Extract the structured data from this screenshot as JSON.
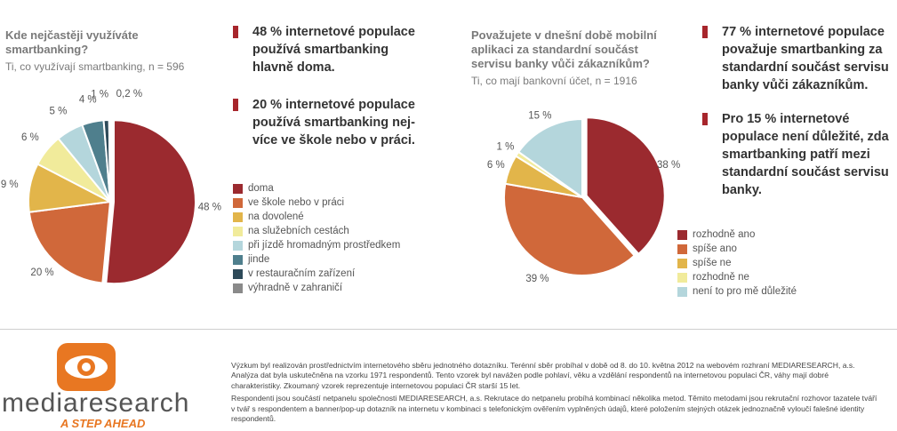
{
  "chart_data": [
    {
      "type": "pie",
      "title": "Kde nejčastěji využíváte smartbanking?",
      "subtitle": "Ti, co využívají smartbanking, n = 596",
      "categories": [
        "doma",
        "ve škole nebo v práci",
        "na dovolené",
        "na služebních cestách",
        "při jízdě hromadným prostředkem",
        "jinde",
        "v restauračním zařízení",
        "výhradně v zahraničí"
      ],
      "values": [
        48,
        20,
        9,
        6,
        5,
        4,
        1,
        0.2
      ],
      "labels": [
        "48 %",
        "20 %",
        "9 %",
        "6 %",
        "5 %",
        "4 %",
        "1 %",
        "0,2 %"
      ],
      "colors": [
        "#9b2a2f",
        "#d0683a",
        "#e2b54a",
        "#f1eb9b",
        "#b4d6dc",
        "#4f7f8d",
        "#2e4a59",
        "#8a8a8a"
      ],
      "legend_position": "right"
    },
    {
      "type": "pie",
      "title": "Považujete v dnešní době mobilní aplikaci za standardní součást servisu banky vůči zákazníkům?",
      "subtitle": "Ti, co mají bankovní účet, n = 1916",
      "categories": [
        "rozhodně ano",
        "spíše ano",
        "spíše ne",
        "rozhodně ne",
        "není to pro mě důležité"
      ],
      "values": [
        38,
        39,
        6,
        1,
        15
      ],
      "labels": [
        "38 %",
        "39 %",
        "6 %",
        "1 %",
        "15 %"
      ],
      "colors": [
        "#9b2a2f",
        "#d0683a",
        "#e2b54a",
        "#f1eb9b",
        "#b4d6dc"
      ],
      "legend_position": "bottom-right"
    }
  ],
  "left": {
    "title_line1": "Kde nejčastěji využíváte",
    "title_line2": "smartbanking?",
    "subtitle": "Ti, co využívají smartbanking, n = 596",
    "highlight1": [
      "48 % internetové populace",
      "používá smartbanking",
      "hlavně doma."
    ],
    "highlight2": [
      "20 % internetové populace",
      "používá smartbanking nej-",
      "více ve škole nebo v práci."
    ]
  },
  "right": {
    "title_line1": "Považujete v dnešní době mobilní",
    "title_line2": "aplikaci za standardní součást",
    "title_line3": "servisu banky vůči zákazníkům?",
    "subtitle": "Ti, co mají bankovní účet, n = 1916",
    "highlight1": [
      "77 % internetové populace",
      "považuje smartbanking za",
      "standardní součást servisu",
      "banky vůči zákazníkům."
    ],
    "highlight2": [
      "Pro 15 % internetové",
      "populace není důležité, zda",
      "smartbanking patří mezi",
      "standardní součást servisu",
      "banky."
    ]
  },
  "brand": {
    "name": "mediaresearch",
    "tagline": "A STEP AHEAD",
    "orange": "#e87722"
  },
  "footer": {
    "p1": [
      "Výzkum byl realizován prostřednictvím internetového sběru jednotného dotazníku. Terénní sběr probíhal v době od 8. do 10. května 2012 na webovém rozhraní MEDIARESEARCH, a.s.",
      "Analýza dat byla uskutečněna na vzorku 1971 respondentů. Tento vzorek byl navážen podle pohlaví, věku a vzdělání respondentů na internetovou populaci ČR, váhy mají dobré",
      "charakteristiky. Zkoumaný vzorek reprezentuje internetovou populaci ČR starší 15 let."
    ],
    "p2": [
      "Respondenti jsou součástí netpanelu společnosti MEDIARESEARCH, a.s. Rekrutace do netpanelu probíhá kombinací několika metod. Těmito metodami jsou rekrutační rozhovor tazatele tváří",
      "v tvář s respondentem a banner/pop-up dotazník na internetu v kombinaci s telefonickým ověřením vyplněných údajů, které položením stejných otázek jednoznačně vyloučí falešné identity",
      "respondentů."
    ]
  }
}
